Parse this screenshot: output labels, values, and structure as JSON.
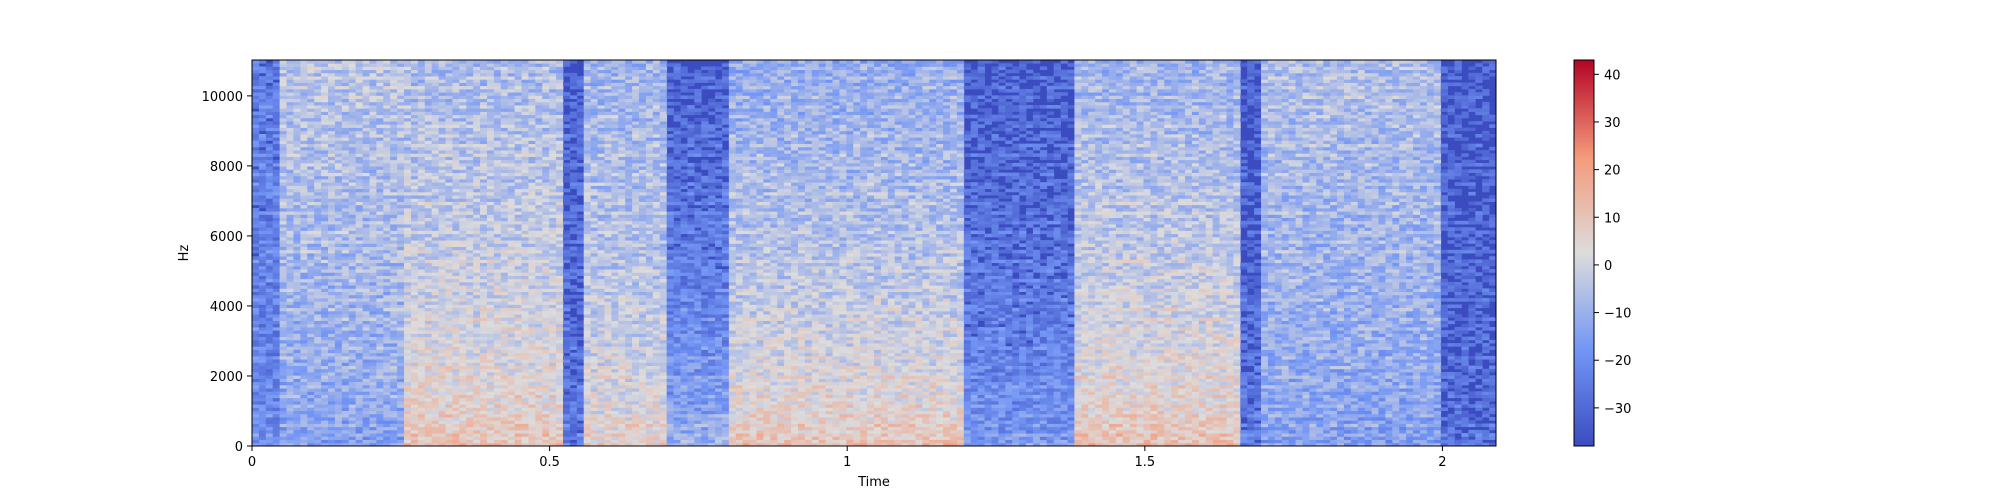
{
  "chart_data": {
    "type": "heatmap",
    "title": "",
    "xlabel": "Time",
    "ylabel": "Hz",
    "xlim": [
      0,
      2.09
    ],
    "ylim": [
      0,
      11025
    ],
    "x_ticks": [
      {
        "value": 0,
        "label": "0"
      },
      {
        "value": 0.5,
        "label": "0.5"
      },
      {
        "value": 1,
        "label": "1"
      },
      {
        "value": 1.5,
        "label": "1.5"
      },
      {
        "value": 2,
        "label": "2"
      }
    ],
    "y_ticks": [
      {
        "value": 0,
        "label": "0"
      },
      {
        "value": 2000,
        "label": "2000"
      },
      {
        "value": 4000,
        "label": "4000"
      },
      {
        "value": 6000,
        "label": "6000"
      },
      {
        "value": 8000,
        "label": "8000"
      },
      {
        "value": 10000,
        "label": "10000"
      }
    ],
    "colorbar": {
      "colormap": "coolwarm",
      "range": [
        -38,
        43
      ],
      "ticks": [
        {
          "value": 40,
          "label": "40"
        },
        {
          "value": 30,
          "label": "30"
        },
        {
          "value": 20,
          "label": "20"
        },
        {
          "value": 10,
          "label": "10"
        },
        {
          "value": 0,
          "label": "0"
        },
        {
          "value": -10,
          "label": "−10"
        },
        {
          "value": -20,
          "label": "−20"
        },
        {
          "value": -30,
          "label": "−30"
        }
      ]
    },
    "segments": [
      {
        "t0": 0.0,
        "t1": 0.05,
        "lf": -20,
        "hf": -26
      },
      {
        "t0": 0.05,
        "t1": 0.25,
        "lf": -18,
        "hf": -5
      },
      {
        "t0": 0.25,
        "t1": 0.52,
        "lf": 12,
        "hf": -8
      },
      {
        "t0": 0.52,
        "t1": 0.56,
        "lf": -25,
        "hf": -32
      },
      {
        "t0": 0.56,
        "t1": 0.7,
        "lf": 8,
        "hf": -10
      },
      {
        "t0": 0.7,
        "t1": 0.8,
        "lf": -6,
        "hf": -33
      },
      {
        "t0": 0.8,
        "t1": 1.2,
        "lf": 13,
        "hf": -12
      },
      {
        "t0": 1.2,
        "t1": 1.38,
        "lf": -14,
        "hf": -33
      },
      {
        "t0": 1.38,
        "t1": 1.66,
        "lf": 14,
        "hf": -10
      },
      {
        "t0": 1.66,
        "t1": 1.7,
        "lf": -25,
        "hf": -33
      },
      {
        "t0": 1.7,
        "t1": 2.0,
        "lf": -18,
        "hf": -7
      },
      {
        "t0": 2.0,
        "t1": 2.09,
        "lf": -28,
        "hf": -33
      }
    ],
    "grid": false
  }
}
